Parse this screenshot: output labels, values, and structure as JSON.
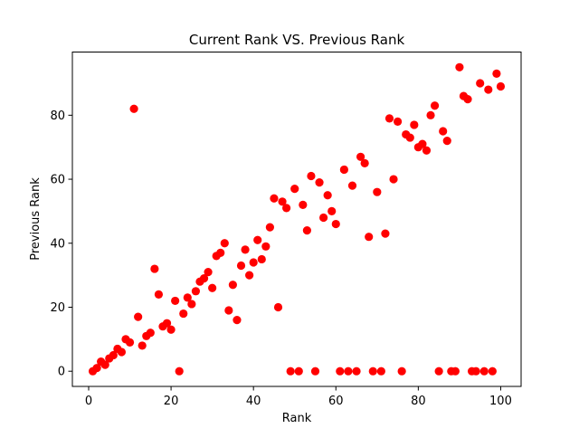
{
  "chart_data": {
    "type": "scatter",
    "title": "Current Rank VS. Previous Rank",
    "xlabel": "Rank",
    "ylabel": "Previous Rank",
    "xlim": [
      -3.95,
      104.95
    ],
    "ylim": [
      -4.75,
      99.75
    ],
    "xticks": [
      0,
      20,
      40,
      60,
      80,
      100
    ],
    "yticks": [
      0,
      20,
      40,
      60,
      80
    ],
    "grid": false,
    "marker_color": "#ff0000",
    "points": [
      [
        1,
        0
      ],
      [
        2,
        1
      ],
      [
        3,
        3
      ],
      [
        4,
        2
      ],
      [
        5,
        4
      ],
      [
        6,
        5
      ],
      [
        7,
        7
      ],
      [
        8,
        6
      ],
      [
        9,
        10
      ],
      [
        10,
        9
      ],
      [
        11,
        82
      ],
      [
        12,
        17
      ],
      [
        13,
        8
      ],
      [
        14,
        11
      ],
      [
        15,
        12
      ],
      [
        16,
        32
      ],
      [
        17,
        24
      ],
      [
        18,
        14
      ],
      [
        19,
        15
      ],
      [
        20,
        13
      ],
      [
        21,
        22
      ],
      [
        22,
        0
      ],
      [
        23,
        18
      ],
      [
        24,
        23
      ],
      [
        25,
        21
      ],
      [
        26,
        25
      ],
      [
        27,
        28
      ],
      [
        28,
        29
      ],
      [
        29,
        31
      ],
      [
        30,
        26
      ],
      [
        31,
        36
      ],
      [
        32,
        37
      ],
      [
        33,
        40
      ],
      [
        34,
        19
      ],
      [
        35,
        27
      ],
      [
        36,
        16
      ],
      [
        37,
        33
      ],
      [
        38,
        38
      ],
      [
        39,
        30
      ],
      [
        40,
        34
      ],
      [
        41,
        41
      ],
      [
        42,
        35
      ],
      [
        43,
        39
      ],
      [
        44,
        45
      ],
      [
        45,
        54
      ],
      [
        46,
        20
      ],
      [
        47,
        53
      ],
      [
        48,
        51
      ],
      [
        49,
        0
      ],
      [
        50,
        57
      ],
      [
        51,
        0
      ],
      [
        52,
        52
      ],
      [
        53,
        44
      ],
      [
        54,
        61
      ],
      [
        55,
        0
      ],
      [
        56,
        59
      ],
      [
        57,
        48
      ],
      [
        58,
        55
      ],
      [
        59,
        50
      ],
      [
        60,
        46
      ],
      [
        61,
        0
      ],
      [
        62,
        63
      ],
      [
        63,
        0
      ],
      [
        64,
        58
      ],
      [
        65,
        0
      ],
      [
        66,
        67
      ],
      [
        67,
        65
      ],
      [
        68,
        42
      ],
      [
        69,
        0
      ],
      [
        70,
        56
      ],
      [
        71,
        0
      ],
      [
        72,
        43
      ],
      [
        73,
        79
      ],
      [
        74,
        60
      ],
      [
        75,
        78
      ],
      [
        76,
        0
      ],
      [
        77,
        74
      ],
      [
        78,
        73
      ],
      [
        79,
        77
      ],
      [
        80,
        70
      ],
      [
        81,
        71
      ],
      [
        82,
        69
      ],
      [
        83,
        80
      ],
      [
        84,
        83
      ],
      [
        85,
        0
      ],
      [
        86,
        75
      ],
      [
        87,
        72
      ],
      [
        88,
        0
      ],
      [
        89,
        0
      ],
      [
        90,
        95
      ],
      [
        91,
        86
      ],
      [
        92,
        85
      ],
      [
        93,
        0
      ],
      [
        94,
        0
      ],
      [
        95,
        90
      ],
      [
        96,
        0
      ],
      [
        97,
        88
      ],
      [
        98,
        0
      ],
      [
        99,
        93
      ],
      [
        100,
        89
      ]
    ]
  }
}
